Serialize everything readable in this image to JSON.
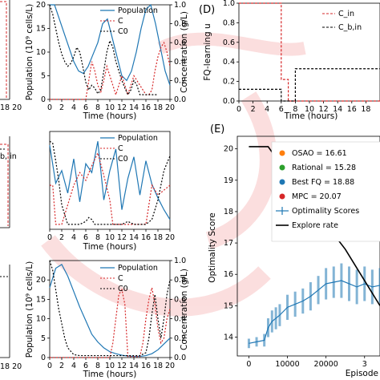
{
  "colors": {
    "population": "#1f77b4",
    "c": "#d62728",
    "c0": "#000000",
    "cin": "#d62728",
    "cbin": "#000000",
    "osao": "#ff7f0e",
    "rational": "#2ca02c",
    "best_fq": "#1f77b4",
    "mpc": "#d62728",
    "optimality": "#1f77b4",
    "explore": "#000000",
    "watermark": "#f4a3a3"
  },
  "watermark_icon": "circular-logo-watermark",
  "left_fragments": {
    "top_ticks": "18 20",
    "mid_label": "b, in",
    "bottom_ticks": "18 20"
  },
  "chart_data": [
    {
      "id": "population_1",
      "type": "line",
      "xlabel": "Time (hours)",
      "ylabel": "Population (10⁹ cells/L)",
      "ylabel2": "Concentration (g/L)",
      "xlim": [
        0,
        20
      ],
      "ylim": [
        0,
        20
      ],
      "ylim2": [
        0,
        1.0
      ],
      "xticks": [
        "0",
        "2",
        "4",
        "6",
        "8",
        "10",
        "12",
        "14",
        "16",
        "18",
        "20"
      ],
      "yticks": [
        "0",
        "5",
        "10",
        "15",
        "20"
      ],
      "yticks2": [
        "0.0",
        "0.2",
        "0.4",
        "0.6",
        "0.8",
        "1.0"
      ],
      "legend": [
        "Population",
        "C",
        "C0"
      ],
      "series": [
        {
          "name": "Population",
          "axis": "left",
          "x": [
            0,
            0.8,
            1.6,
            2.4,
            3.2,
            4,
            4.8,
            5.6,
            6.4,
            7.2,
            8,
            8.8,
            9.6,
            10.4,
            11.2,
            12,
            12.8,
            13.6,
            14.4,
            15.2,
            16,
            16.8,
            17.6,
            18.4,
            19.2,
            20
          ],
          "y": [
            20,
            20,
            17,
            14,
            11,
            8,
            6,
            5.5,
            7,
            9.5,
            12,
            16,
            17,
            13,
            9,
            5,
            4,
            6,
            10,
            15,
            19,
            20,
            16,
            11,
            6,
            3
          ]
        },
        {
          "name": "C",
          "axis": "right",
          "x": [
            0,
            6,
            6.5,
            7,
            7.5,
            8,
            8.5,
            9,
            9.5,
            10,
            10.5,
            11,
            11.5,
            12,
            12.5,
            13,
            13.5,
            14,
            16,
            16.5,
            17,
            17.5,
            18,
            18.5,
            19,
            19.5,
            20
          ],
          "y": [
            0,
            0,
            0.2,
            0.4,
            0.3,
            0.15,
            0.08,
            0.2,
            0.35,
            0.25,
            0.15,
            0.05,
            0.15,
            0.25,
            0.15,
            0.05,
            0.15,
            0.25,
            0.05,
            0.05,
            0.1,
            0.3,
            0.45,
            0.55,
            0.6,
            0.5,
            0.35
          ]
        },
        {
          "name": "C0",
          "axis": "right",
          "x": [
            0,
            0.5,
            1,
            1.5,
            2,
            2.5,
            3,
            3.5,
            4,
            4.5,
            5,
            5.5,
            6,
            6.5,
            7,
            7.5,
            8,
            8.5,
            9,
            9.5,
            10,
            10.5,
            11,
            11.5,
            12,
            12.5,
            13,
            13.5,
            14,
            14.5,
            15,
            15.5,
            16,
            16.5,
            17,
            17.5,
            18
          ],
          "y": [
            1,
            0.9,
            0.75,
            0.6,
            0.48,
            0.4,
            0.35,
            0.38,
            0.45,
            0.55,
            0.5,
            0.35,
            0.18,
            0.1,
            0.15,
            0.12,
            0.06,
            0.1,
            0.3,
            0.5,
            0.62,
            0.55,
            0.4,
            0.3,
            0.2,
            0.12,
            0.05,
            0.1,
            0.2,
            0.15,
            0.05,
            0.05,
            0.05,
            0.05,
            0.05,
            0.05,
            0.05
          ]
        }
      ]
    },
    {
      "id": "population_2",
      "type": "line",
      "xlabel": "Time (hours)",
      "xlim": [
        0,
        20
      ],
      "xticks": [
        "0",
        "2",
        "4",
        "6",
        "8",
        "10",
        "12",
        "14",
        "16",
        "18",
        "20"
      ],
      "legend": [
        "Population",
        "C",
        "C0"
      ],
      "series": [
        {
          "name": "Population",
          "axis": "left",
          "x": [
            0,
            1,
            2,
            3,
            4,
            5,
            6,
            7,
            8,
            9,
            10,
            11,
            12,
            13,
            14,
            15,
            16,
            17,
            18,
            19,
            20
          ],
          "y": [
            0.86,
            0.47,
            0.6,
            0.37,
            0.72,
            0.28,
            0.67,
            0.58,
            0.9,
            0.3,
            0.6,
            0.82,
            0.2,
            0.52,
            0.74,
            0.35,
            0.7,
            0.46,
            0.32,
            0.2,
            0.1
          ]
        },
        {
          "name": "C",
          "axis": "right",
          "x": [
            0,
            0.5,
            1,
            2,
            3,
            4,
            5,
            6,
            7,
            8,
            9,
            10,
            10.5,
            11,
            12,
            13,
            14,
            15,
            16,
            17,
            18,
            19,
            20
          ],
          "y": [
            0.45,
            0.45,
            0.05,
            0.05,
            0.25,
            0.45,
            0.58,
            0.5,
            0.65,
            0.78,
            0.55,
            0.3,
            0.05,
            0.05,
            0.05,
            0.05,
            0.05,
            0.05,
            0.05,
            0.45,
            0.35,
            0.4,
            0.45
          ]
        },
        {
          "name": "C0",
          "axis": "right",
          "x": [
            0,
            0.5,
            1,
            1.5,
            2,
            3,
            4,
            5,
            6,
            6.5,
            7,
            7.5,
            8,
            9,
            10,
            11,
            12,
            13,
            14,
            15,
            16,
            17,
            18,
            19,
            20
          ],
          "y": [
            0.9,
            0.88,
            0.7,
            0.5,
            0.25,
            0.05,
            0.05,
            0.05,
            0.08,
            0.12,
            0.1,
            0.05,
            0.05,
            0.05,
            0.05,
            0.05,
            0.05,
            0.08,
            0.05,
            0.05,
            0.05,
            0.1,
            0.3,
            0.6,
            0.75
          ]
        }
      ]
    },
    {
      "id": "population_3",
      "type": "line",
      "xlabel": "Time (hours)",
      "ylabel": "Population (10⁹ cells/L)",
      "ylabel2": "Concentration (g/L)",
      "xlim": [
        0,
        20
      ],
      "ylim": [
        0,
        25
      ],
      "ylim2": [
        0,
        1.0
      ],
      "xticks": [
        "0",
        "2",
        "4",
        "6",
        "8",
        "10",
        "12",
        "14",
        "16",
        "18",
        "20"
      ],
      "yticks": [
        "0",
        "5",
        "10",
        "15",
        "20"
      ],
      "yticks2": [
        "0.0",
        "0.2",
        "0.4",
        "0.6",
        "0.8",
        "1.0"
      ],
      "legend": [
        "Population",
        "C",
        "C0"
      ],
      "series": [
        {
          "name": "Population",
          "axis": "left",
          "x": [
            0,
            1,
            2,
            3,
            4,
            5,
            6,
            7,
            8,
            9,
            10,
            11,
            12,
            13,
            14,
            15,
            16,
            17,
            18,
            19,
            20
          ],
          "y": [
            18,
            23,
            24,
            21,
            17,
            13,
            9.5,
            6,
            4,
            2.5,
            1.5,
            1,
            0.6,
            0.4,
            0.3,
            0.3,
            0.5,
            1,
            2,
            3.5,
            5
          ]
        },
        {
          "name": "C",
          "axis": "right",
          "x": [
            0,
            10,
            10.5,
            11,
            11.5,
            12,
            12.5,
            13,
            15,
            15.5,
            16,
            16.5,
            17,
            17.5,
            18,
            18.5,
            19,
            19.5,
            20
          ],
          "y": [
            0,
            0,
            0.15,
            0.4,
            0.65,
            0.7,
            0.55,
            0.01,
            0.01,
            0.15,
            0.4,
            0.6,
            0.72,
            0.55,
            0.3,
            0.15,
            0.2,
            0.4,
            0.5
          ]
        },
        {
          "name": "C0",
          "axis": "right",
          "x": [
            0,
            0.5,
            1,
            1.5,
            2,
            2.5,
            3,
            4,
            5,
            6,
            7,
            8,
            9,
            10,
            11,
            12,
            13,
            14,
            15,
            16,
            16.5,
            17,
            17.5,
            18,
            18.5,
            19,
            19.5,
            20
          ],
          "y": [
            1,
            0.9,
            0.7,
            0.5,
            0.35,
            0.2,
            0.1,
            0.03,
            0.02,
            0.02,
            0.02,
            0.02,
            0.02,
            0.02,
            0.02,
            0.02,
            0.02,
            0.02,
            0.02,
            0.05,
            0.2,
            0.45,
            0.65,
            0.4,
            0.2,
            0.4,
            0.65,
            0.8
          ]
        }
      ]
    },
    {
      "id": "fq_learning",
      "type": "line",
      "panel_label": "(D)",
      "ylabel": "FQ-learning u",
      "xlabel": "Time (hours)",
      "xlim": [
        0,
        20
      ],
      "ylim": [
        0,
        1.0
      ],
      "xticks": [
        "0",
        "2",
        "4",
        "6",
        "8",
        "10",
        "12",
        "14",
        "16",
        "18"
      ],
      "yticks": [
        "0.0",
        "0.2",
        "0.4",
        "0.6",
        "0.8",
        "1.0"
      ],
      "legend": [
        "C_in",
        "C_b,in"
      ],
      "series": [
        {
          "name": "C_in",
          "style": "dashed",
          "x": [
            0,
            6,
            6,
            7,
            7,
            14,
            14,
            20
          ],
          "y": [
            1.0,
            1.0,
            0.22,
            0.22,
            0.0,
            0.0,
            0.0,
            0.0
          ]
        },
        {
          "name": "C_b,in",
          "style": "dashed",
          "x": [
            0,
            6,
            6,
            8,
            8,
            20
          ],
          "y": [
            0.12,
            0.12,
            0.0,
            0.0,
            0.33,
            0.33
          ]
        }
      ]
    },
    {
      "id": "optimality",
      "type": "line",
      "panel_label": "(E)",
      "ylabel": "Optimality Score",
      "xlabel": "Episode",
      "xlim": [
        -3000,
        34000
      ],
      "ylim": [
        13.4,
        20.4
      ],
      "xticks": [
        "0",
        "10000",
        "20000",
        "3"
      ],
      "yticks": [
        "14",
        "15",
        "16",
        "17",
        "18",
        "19",
        "20"
      ],
      "legend": [
        {
          "label": "OSAO = 16.61",
          "marker": "dot",
          "color_key": "osao"
        },
        {
          "label": "Rational = 15.28",
          "marker": "dot",
          "color_key": "rational"
        },
        {
          "label": "Best FQ = 18.88",
          "marker": "dot",
          "color_key": "best_fq"
        },
        {
          "label": "MPC = 20.07",
          "marker": "dot",
          "color_key": "mpc"
        },
        {
          "label": "Optimality Scores",
          "marker": "errorbar",
          "color_key": "optimality"
        },
        {
          "label": "Explore rate",
          "marker": "line",
          "color_key": "explore"
        }
      ],
      "series": [
        {
          "name": "Optimality Scores",
          "x": [
            0,
            2000,
            4000,
            5000,
            6000,
            7000,
            8000,
            10000,
            12000,
            14000,
            16000,
            18000,
            20000,
            22000,
            24000,
            26000,
            28000,
            30000,
            32000,
            34000
          ],
          "y": [
            13.8,
            13.85,
            13.9,
            14.3,
            14.5,
            14.6,
            14.7,
            14.95,
            15.05,
            15.15,
            15.3,
            15.5,
            15.7,
            15.75,
            15.8,
            15.7,
            15.6,
            15.7,
            15.6,
            15.65
          ],
          "err": [
            0.15,
            0.15,
            0.2,
            0.3,
            0.35,
            0.35,
            0.35,
            0.4,
            0.4,
            0.4,
            0.45,
            0.45,
            0.5,
            0.5,
            0.55,
            0.55,
            0.55,
            0.55,
            0.55,
            0.55
          ]
        },
        {
          "name": "Explore rate",
          "x": [
            0,
            5000,
            10000,
            15000,
            20000,
            25000,
            30000,
            34000
          ],
          "y": [
            20.07,
            20.07,
            19.2,
            18.4,
            17.6,
            16.8,
            15.8,
            15.0
          ]
        }
      ]
    }
  ]
}
